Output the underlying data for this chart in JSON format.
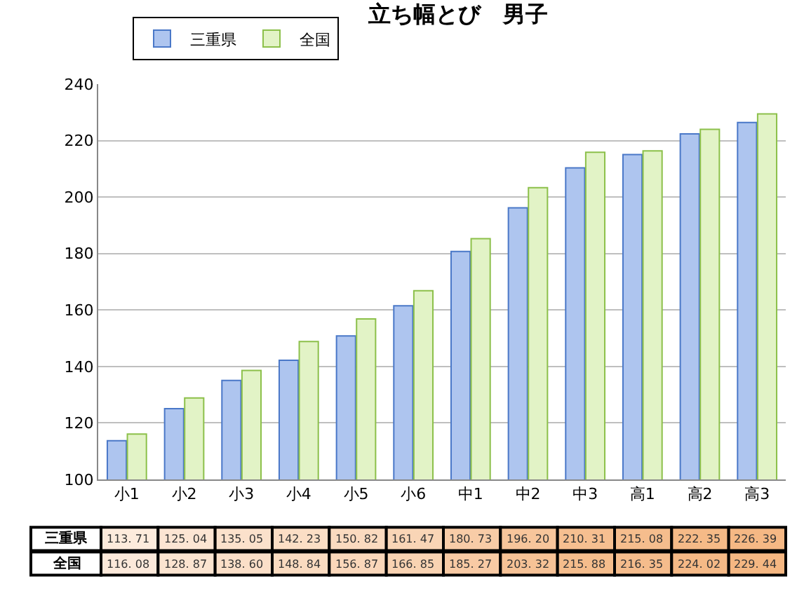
{
  "chart_data": {
    "type": "bar",
    "title": "立ち幅とび　男子",
    "categories": [
      "小1",
      "小2",
      "小3",
      "小4",
      "小5",
      "小6",
      "中1",
      "中2",
      "中3",
      "高1",
      "高2",
      "高3"
    ],
    "series": [
      {
        "name": "三重県",
        "color": "#aec5ef",
        "values": [
          113.71,
          125.04,
          135.05,
          142.23,
          150.82,
          161.47,
          180.73,
          196.2,
          210.31,
          215.08,
          222.35,
          226.39
        ]
      },
      {
        "name": "全国",
        "color": "#e2f3c6",
        "values": [
          116.08,
          128.87,
          138.6,
          148.84,
          156.87,
          166.85,
          185.27,
          203.32,
          215.88,
          216.35,
          224.02,
          229.44
        ]
      }
    ],
    "value_labels": [
      [
        "113. 71",
        "125. 04",
        "135. 05",
        "142. 23",
        "150. 82",
        "161. 47",
        "180. 73",
        "196. 20",
        "210. 31",
        "215. 08",
        "222. 35",
        "226. 39"
      ],
      [
        "116. 08",
        "128. 87",
        "138. 60",
        "148. 84",
        "156. 87",
        "166. 85",
        "185. 27",
        "203. 32",
        "215. 88",
        "216. 35",
        "224. 02",
        "229. 44"
      ]
    ],
    "ylim": [
      100,
      240
    ],
    "yticks": [
      100,
      120,
      140,
      160,
      180,
      200,
      220,
      240
    ],
    "grid": "y",
    "legend": "top left"
  }
}
